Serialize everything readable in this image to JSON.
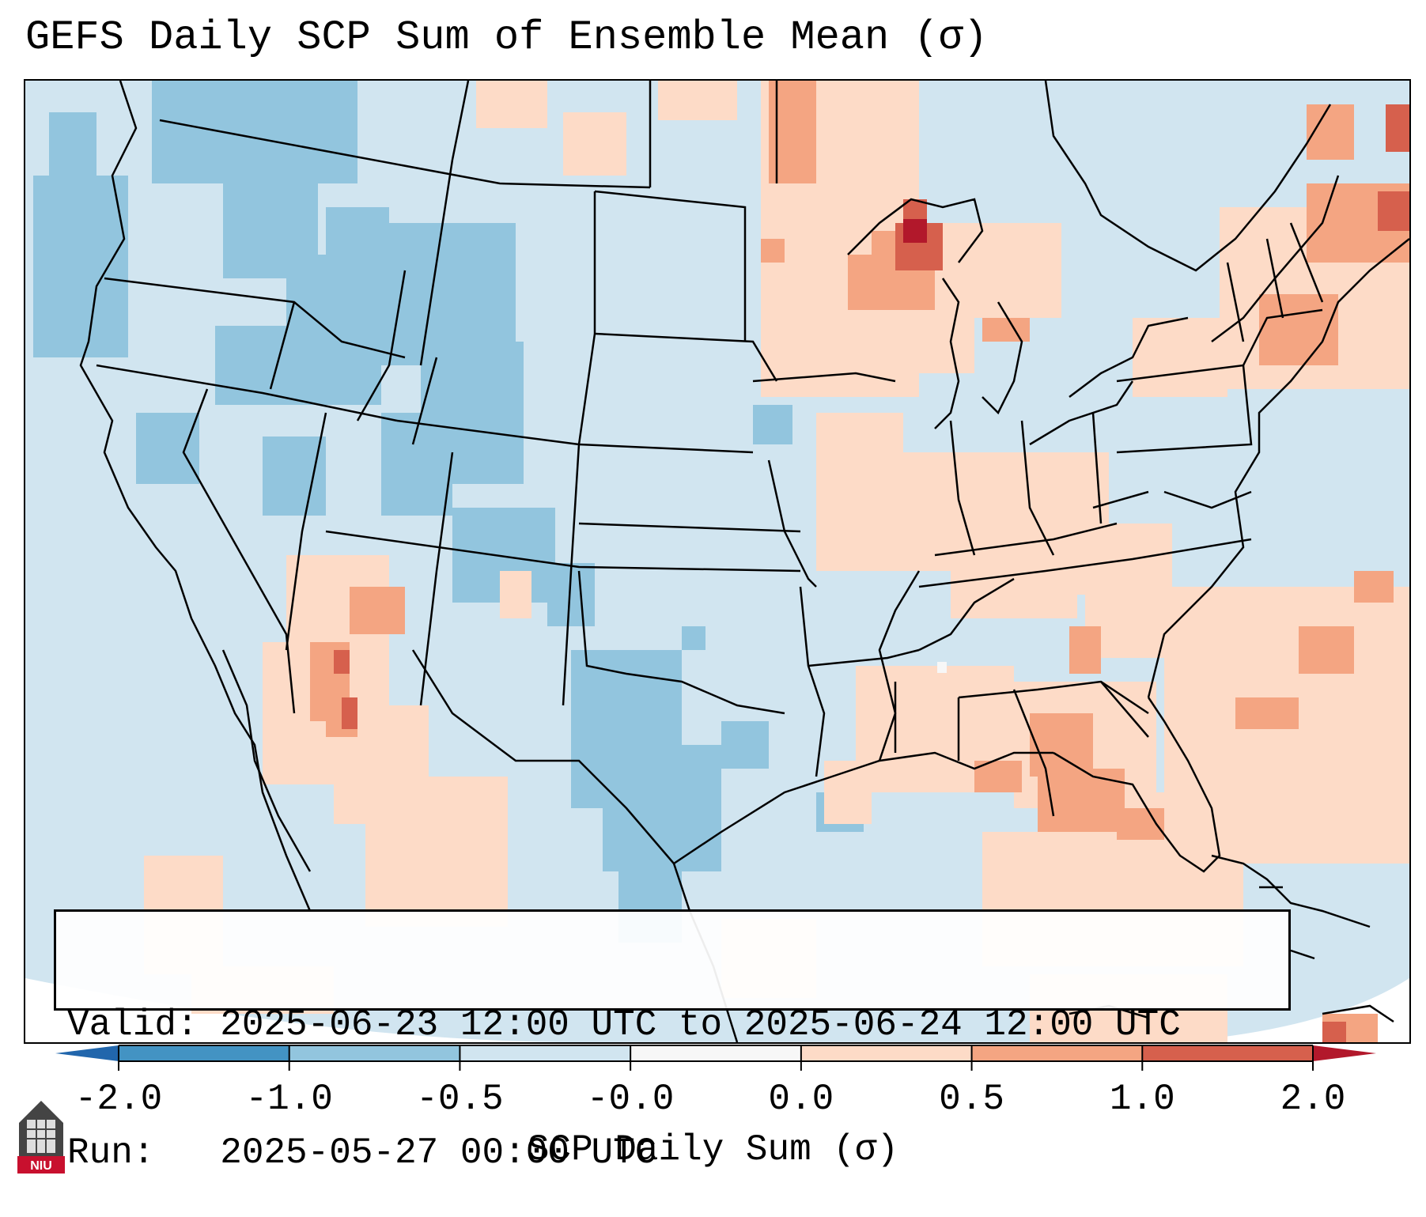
{
  "title": "GEFS Daily SCP Sum of Ensemble Mean (σ)",
  "info": {
    "valid": "Valid: 2025-06-23 12:00 UTC to 2025-06-24 12:00 UTC",
    "run": "Run:   2025-05-27 00:00 UTC"
  },
  "colorbar": {
    "label": "SCP Daily Sum (σ)",
    "ticks": [
      "-2.0",
      "-1.0",
      "-0.5",
      "-0.0",
      "0.0",
      "0.5",
      "1.0",
      "2.0"
    ],
    "extend": "both",
    "colors": {
      "under": "#2166ac",
      "bins": [
        "#4393c3",
        "#92c5de",
        "#d1e5f0",
        "#f7f7f7",
        "#fddbc7",
        "#f4a582",
        "#d6604d"
      ],
      "over": "#b2182b"
    }
  },
  "logo": {
    "text": "NIU",
    "icon": "university-tower-icon"
  }
}
